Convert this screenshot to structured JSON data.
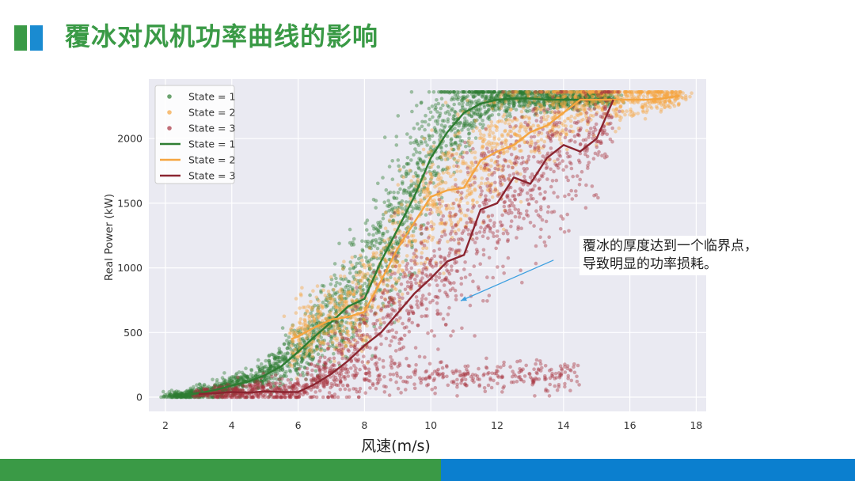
{
  "slide": {
    "title": "覆冰对风机功率曲线的影响",
    "annotation_lines": [
      "覆冰的厚度达到一个临界点，",
      "导致明显的功率损耗。"
    ],
    "colors": {
      "brand_green": "#3a9a46",
      "brand_blue": "#0b7fcf"
    }
  },
  "chart_data": {
    "type": "scatter",
    "xlabel": "风速(m/s)",
    "ylabel": "Real Power (kW)",
    "xlim": [
      1.5,
      18.3
    ],
    "ylim": [
      -110,
      2460
    ],
    "xticks": [
      2,
      4,
      6,
      8,
      10,
      12,
      14,
      16,
      18
    ],
    "yticks": [
      0,
      500,
      1000,
      1500,
      2000
    ],
    "grid": true,
    "legend_position": "top-left",
    "legend": [
      "State = 1",
      "State = 2",
      "State = 3",
      "State = 1",
      "State = 2",
      "State = 3"
    ],
    "scatter_series": [
      {
        "name": "State = 1",
        "color": "#2e7d32",
        "count": 2600,
        "anchors": [
          [
            2.5,
            15
          ],
          [
            3,
            30
          ],
          [
            3.5,
            60
          ],
          [
            4,
            90
          ],
          [
            4.5,
            130
          ],
          [
            5,
            180
          ],
          [
            5.5,
            260
          ],
          [
            6,
            360
          ],
          [
            6.5,
            480
          ],
          [
            7,
            600
          ],
          [
            7.5,
            750
          ],
          [
            8,
            900
          ],
          [
            8.5,
            1150
          ],
          [
            9,
            1400
          ],
          [
            9.5,
            1650
          ],
          [
            10,
            1900
          ],
          [
            10.5,
            2100
          ],
          [
            11,
            2220
          ],
          [
            11.5,
            2280
          ],
          [
            12,
            2300
          ],
          [
            13,
            2310
          ],
          [
            14,
            2310
          ],
          [
            15,
            2310
          ]
        ],
        "spread": [
          [
            2.5,
            15
          ],
          [
            5,
            60
          ],
          [
            7,
            160
          ],
          [
            9,
            300
          ],
          [
            10,
            260
          ],
          [
            11,
            150
          ],
          [
            12,
            60
          ],
          [
            15,
            30
          ]
        ],
        "xrange": [
          2.2,
          15.5
        ]
      },
      {
        "name": "State = 2",
        "color": "#f5a540",
        "count": 1600,
        "anchors": [
          [
            5.8,
            450
          ],
          [
            6,
            480
          ],
          [
            6.5,
            560
          ],
          [
            7,
            600
          ],
          [
            7.5,
            650
          ],
          [
            8,
            760
          ],
          [
            8.5,
            960
          ],
          [
            9,
            1150
          ],
          [
            9.5,
            1350
          ],
          [
            10,
            1500
          ],
          [
            10.5,
            1600
          ],
          [
            11,
            1650
          ],
          [
            11.5,
            1800
          ],
          [
            12,
            1950
          ],
          [
            12.5,
            2050
          ],
          [
            13,
            2100
          ],
          [
            13.5,
            2150
          ],
          [
            14,
            2250
          ],
          [
            14.5,
            2300
          ],
          [
            15.5,
            2310
          ],
          [
            17.5,
            2330
          ]
        ],
        "spread": [
          [
            6,
            120
          ],
          [
            8,
            200
          ],
          [
            10,
            260
          ],
          [
            12,
            220
          ],
          [
            14,
            150
          ],
          [
            17.5,
            40
          ]
        ],
        "xrange": [
          5.8,
          17.6
        ]
      },
      {
        "name": "State = 3",
        "color": "#a8323e",
        "count": 1500,
        "anchors": [
          [
            3,
            25
          ],
          [
            4,
            35
          ],
          [
            5,
            40
          ],
          [
            6,
            45
          ],
          [
            6.5,
            120
          ],
          [
            7,
            200
          ],
          [
            7.5,
            300
          ],
          [
            8,
            420
          ],
          [
            8.5,
            550
          ],
          [
            9,
            700
          ],
          [
            9.5,
            830
          ],
          [
            10,
            950
          ],
          [
            10.5,
            1050
          ],
          [
            11,
            1200
          ],
          [
            11.5,
            1400
          ],
          [
            12,
            1500
          ],
          [
            12.5,
            1650
          ],
          [
            13,
            1700
          ],
          [
            13.5,
            1800
          ],
          [
            14,
            1900
          ],
          [
            14.5,
            1950
          ],
          [
            15,
            2000
          ],
          [
            15.5,
            2300
          ]
        ],
        "spread": [
          [
            3,
            20
          ],
          [
            6,
            60
          ],
          [
            8,
            220
          ],
          [
            10,
            300
          ],
          [
            12,
            320
          ],
          [
            14,
            280
          ],
          [
            15.5,
            150
          ]
        ],
        "xrange": [
          3.0,
          15.5
        ],
        "low_band": {
          "xrange": [
            6.5,
            14.5
          ],
          "y_center": 160,
          "y_spread": 110,
          "count": 320
        }
      }
    ],
    "line_series": [
      {
        "name": "State = 1",
        "color": "#2e7d32",
        "x": [
          2.5,
          3,
          3.5,
          4,
          4.5,
          5,
          5.5,
          6,
          6.5,
          7,
          7.5,
          8,
          8.5,
          9,
          9.5,
          10,
          10.5,
          11,
          11.5,
          12,
          12.5,
          13,
          13.5,
          14,
          14.5,
          15
        ],
        "y": [
          15,
          30,
          55,
          90,
          120,
          170,
          240,
          350,
          470,
          580,
          700,
          760,
          1050,
          1300,
          1550,
          1850,
          2050,
          2200,
          2270,
          2300,
          2310,
          2310,
          2300,
          2300,
          2300,
          2300
        ]
      },
      {
        "name": "State = 2",
        "color": "#f5a540",
        "x": [
          5.8,
          6,
          6.5,
          7,
          7.5,
          8,
          8.5,
          9,
          9.5,
          10,
          10.5,
          11,
          11.5,
          12,
          12.5,
          13,
          13.5,
          14,
          14.5,
          15,
          15.5,
          16,
          16.5,
          17,
          17.5
        ],
        "y": [
          450,
          470,
          540,
          600,
          620,
          660,
          900,
          1150,
          1350,
          1550,
          1600,
          1620,
          1830,
          1900,
          1950,
          2050,
          2100,
          2200,
          2300,
          2300,
          2300,
          2300,
          2300,
          2310,
          2330
        ]
      },
      {
        "name": "State = 3",
        "color": "#8b2530",
        "x": [
          3,
          3.5,
          4,
          4.5,
          5,
          5.5,
          6,
          6.5,
          7,
          7.5,
          8,
          8.5,
          9,
          9.5,
          10,
          10.5,
          11,
          11.5,
          12,
          12.5,
          13,
          13.5,
          14,
          14.5,
          15,
          15.5
        ],
        "y": [
          25,
          30,
          40,
          35,
          45,
          40,
          40,
          100,
          180,
          280,
          400,
          500,
          650,
          800,
          920,
          1050,
          1100,
          1450,
          1500,
          1700,
          1650,
          1850,
          1950,
          1900,
          2000,
          2300
        ]
      }
    ],
    "annotation_arrow": {
      "from": [
        13.7,
        1060
      ],
      "to": [
        10.9,
        745
      ]
    }
  }
}
